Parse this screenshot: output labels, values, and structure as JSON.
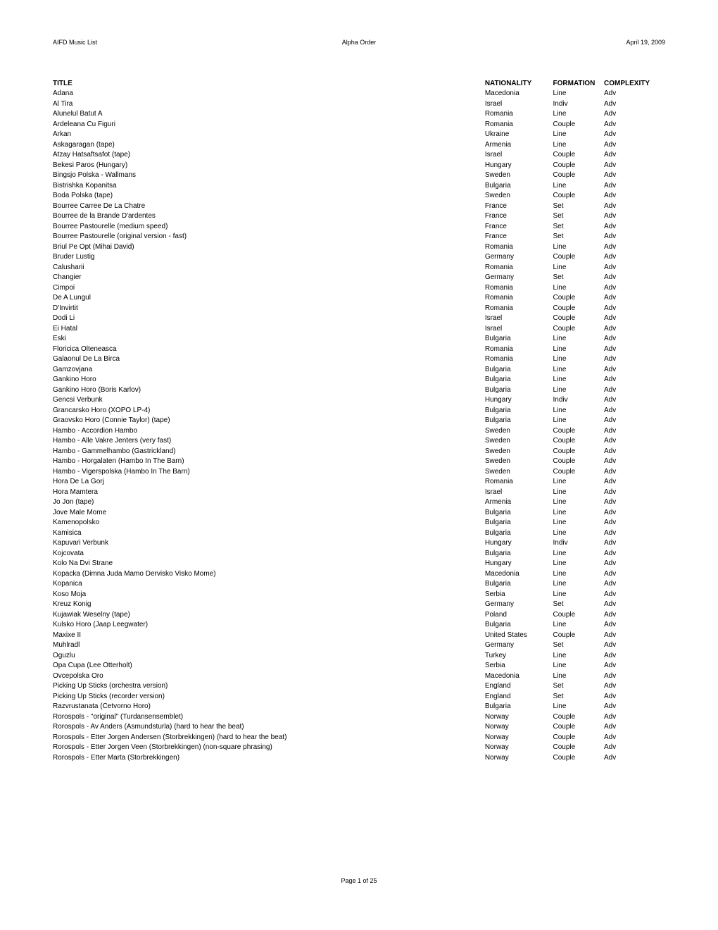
{
  "header": {
    "left": "AIFD Music List",
    "center": "Alpha Order",
    "right": "April 19, 2009"
  },
  "columns": {
    "title": "TITLE",
    "nationality": "NATIONALITY",
    "formation": "FORMATION",
    "complexity": "COMPLEXITY"
  },
  "rows": [
    {
      "title": "Adana",
      "nationality": "Macedonia",
      "formation": "Line",
      "complexity": "Adv"
    },
    {
      "title": "Al Tira",
      "nationality": "Israel",
      "formation": "Indiv",
      "complexity": "Adv"
    },
    {
      "title": "Alunelul Batut A",
      "nationality": "Romania",
      "formation": "Line",
      "complexity": "Adv"
    },
    {
      "title": "Ardeleana Cu Figuri",
      "nationality": "Romania",
      "formation": "Couple",
      "complexity": "Adv"
    },
    {
      "title": "Arkan",
      "nationality": "Ukraine",
      "formation": "Line",
      "complexity": "Adv"
    },
    {
      "title": "Askagaragan (tape)",
      "nationality": "Armenia",
      "formation": "Line",
      "complexity": "Adv"
    },
    {
      "title": "Atzay Hatsaftsafot (tape)",
      "nationality": "Israel",
      "formation": "Couple",
      "complexity": "Adv"
    },
    {
      "title": "Bekesi Paros (Hungary)",
      "nationality": "Hungary",
      "formation": "Couple",
      "complexity": "Adv"
    },
    {
      "title": "Bingsjo Polska - Wallmans",
      "nationality": "Sweden",
      "formation": "Couple",
      "complexity": "Adv"
    },
    {
      "title": "Bistrishka Kopanitsa",
      "nationality": "Bulgaria",
      "formation": "Line",
      "complexity": "Adv"
    },
    {
      "title": "Boda Polska (tape)",
      "nationality": "Sweden",
      "formation": "Couple",
      "complexity": "Adv"
    },
    {
      "title": "Bourree Carree De La Chatre",
      "nationality": "France",
      "formation": "Set",
      "complexity": "Adv"
    },
    {
      "title": "Bourree de la Brande D'ardentes",
      "nationality": "France",
      "formation": "Set",
      "complexity": "Adv"
    },
    {
      "title": "Bourree Pastourelle (medium speed)",
      "nationality": "France",
      "formation": "Set",
      "complexity": "Adv"
    },
    {
      "title": "Bourree Pastourelle (original version - fast)",
      "nationality": "France",
      "formation": "Set",
      "complexity": "Adv"
    },
    {
      "title": "Briul Pe Opt (Mihai David)",
      "nationality": "Romania",
      "formation": "Line",
      "complexity": "Adv"
    },
    {
      "title": "Bruder Lustig",
      "nationality": "Germany",
      "formation": "Couple",
      "complexity": "Adv"
    },
    {
      "title": "Calusharii",
      "nationality": "Romania",
      "formation": "Line",
      "complexity": "Adv"
    },
    {
      "title": "Changier",
      "nationality": "Germany",
      "formation": "Set",
      "complexity": "Adv"
    },
    {
      "title": "Cimpoi",
      "nationality": "Romania",
      "formation": "Line",
      "complexity": "Adv"
    },
    {
      "title": "De A Lungul",
      "nationality": "Romania",
      "formation": "Couple",
      "complexity": "Adv"
    },
    {
      "title": "D'Invirtit",
      "nationality": "Romania",
      "formation": "Couple",
      "complexity": "Adv"
    },
    {
      "title": "Dodi Li",
      "nationality": "Israel",
      "formation": "Couple",
      "complexity": "Adv"
    },
    {
      "title": "Ei Hatal",
      "nationality": "Israel",
      "formation": "Couple",
      "complexity": "Adv"
    },
    {
      "title": "Eski",
      "nationality": "Bulgaria",
      "formation": "Line",
      "complexity": "Adv"
    },
    {
      "title": "Floricica Olteneasca",
      "nationality": "Romania",
      "formation": "Line",
      "complexity": "Adv"
    },
    {
      "title": "Galaonul De La Birca",
      "nationality": "Romania",
      "formation": "Line",
      "complexity": "Adv"
    },
    {
      "title": "Gamzovjana",
      "nationality": "Bulgaria",
      "formation": "Line",
      "complexity": "Adv"
    },
    {
      "title": "Gankino Horo",
      "nationality": "Bulgaria",
      "formation": "Line",
      "complexity": "Adv"
    },
    {
      "title": "Gankino Horo (Boris Karlov)",
      "nationality": "Bulgaria",
      "formation": "Line",
      "complexity": "Adv"
    },
    {
      "title": "Gencsi Verbunk",
      "nationality": "Hungary",
      "formation": "Indiv",
      "complexity": "Adv"
    },
    {
      "title": "Grancarsko Horo (XOPO LP-4)",
      "nationality": "Bulgaria",
      "formation": "Line",
      "complexity": "Adv"
    },
    {
      "title": "Graovsko Horo (Connie Taylor) (tape)",
      "nationality": "Bulgaria",
      "formation": "Line",
      "complexity": "Adv"
    },
    {
      "title": "Hambo - Accordion Hambo",
      "nationality": "Sweden",
      "formation": "Couple",
      "complexity": "Adv"
    },
    {
      "title": "Hambo - Alle Vakre Jenters (very fast)",
      "nationality": "Sweden",
      "formation": "Couple",
      "complexity": "Adv"
    },
    {
      "title": "Hambo - Gammelhambo (Gastrickland)",
      "nationality": "Sweden",
      "formation": "Couple",
      "complexity": "Adv"
    },
    {
      "title": "Hambo - Horgalaten (Hambo In The Barn)",
      "nationality": "Sweden",
      "formation": "Couple",
      "complexity": "Adv"
    },
    {
      "title": "Hambo - Vigerspolska (Hambo In The Barn)",
      "nationality": "Sweden",
      "formation": "Couple",
      "complexity": "Adv"
    },
    {
      "title": "Hora De La Gorj",
      "nationality": "Romania",
      "formation": "Line",
      "complexity": "Adv"
    },
    {
      "title": "Hora Mamtera",
      "nationality": "Israel",
      "formation": "Line",
      "complexity": "Adv"
    },
    {
      "title": "Jo Jon (tape)",
      "nationality": "Armenia",
      "formation": "Line",
      "complexity": "Adv"
    },
    {
      "title": "Jove Male Mome",
      "nationality": "Bulgaria",
      "formation": "Line",
      "complexity": "Adv"
    },
    {
      "title": "Kamenopolsko",
      "nationality": "Bulgaria",
      "formation": "Line",
      "complexity": "Adv"
    },
    {
      "title": "Kamisica",
      "nationality": "Bulgaria",
      "formation": "Line",
      "complexity": "Adv"
    },
    {
      "title": "Kapuvari Verbunk",
      "nationality": "Hungary",
      "formation": "Indiv",
      "complexity": "Adv"
    },
    {
      "title": "Kojcovata",
      "nationality": "Bulgaria",
      "formation": "Line",
      "complexity": "Adv"
    },
    {
      "title": "Kolo Na Dvi Strane",
      "nationality": "Hungary",
      "formation": "Line",
      "complexity": "Adv"
    },
    {
      "title": "Kopacka (Dimna Juda Mamo Dervisko Visko Mome)",
      "nationality": "Macedonia",
      "formation": "Line",
      "complexity": "Adv"
    },
    {
      "title": "Kopanica",
      "nationality": "Bulgaria",
      "formation": "Line",
      "complexity": "Adv"
    },
    {
      "title": "Koso Moja",
      "nationality": "Serbia",
      "formation": "Line",
      "complexity": "Adv"
    },
    {
      "title": "Kreuz Konig",
      "nationality": "Germany",
      "formation": "Set",
      "complexity": "Adv"
    },
    {
      "title": "Kujawiak Weselny (tape)",
      "nationality": "Poland",
      "formation": "Couple",
      "complexity": "Adv"
    },
    {
      "title": "Kulsko Horo (Jaap Leegwater)",
      "nationality": "Bulgaria",
      "formation": "Line",
      "complexity": "Adv"
    },
    {
      "title": "Maxixe II",
      "nationality": "United States",
      "formation": "Couple",
      "complexity": "Adv"
    },
    {
      "title": "Muhlradl",
      "nationality": "Germany",
      "formation": "Set",
      "complexity": "Adv"
    },
    {
      "title": "Oguzlu",
      "nationality": "Turkey",
      "formation": "Line",
      "complexity": "Adv"
    },
    {
      "title": "Opa Cupa (Lee Otterholt)",
      "nationality": "Serbia",
      "formation": "Line",
      "complexity": "Adv"
    },
    {
      "title": "Ovcepolska Oro",
      "nationality": "Macedonia",
      "formation": "Line",
      "complexity": "Adv"
    },
    {
      "title": "Picking Up Sticks (orchestra version)",
      "nationality": "England",
      "formation": "Set",
      "complexity": "Adv"
    },
    {
      "title": "Picking Up Sticks (recorder version)",
      "nationality": "England",
      "formation": "Set",
      "complexity": "Adv"
    },
    {
      "title": "Razvrustanata (Cetvorno Horo)",
      "nationality": "Bulgaria",
      "formation": "Line",
      "complexity": "Adv"
    },
    {
      "title": "Rorospols - \"original\" (Turdansensemblet)",
      "nationality": "Norway",
      "formation": "Couple",
      "complexity": "Adv"
    },
    {
      "title": "Rorospols - Av Anders (Asmundsturla) (hard to hear the beat)",
      "nationality": "Norway",
      "formation": "Couple",
      "complexity": "Adv"
    },
    {
      "title": "Rorospols - Etter Jorgen Andersen (Storbrekkingen) (hard to hear the beat)",
      "nationality": "Norway",
      "formation": "Couple",
      "complexity": "Adv"
    },
    {
      "title": "Rorospols - Etter Jorgen Veen (Storbrekkingen) (non-square phrasing)",
      "nationality": "Norway",
      "formation": "Couple",
      "complexity": "Adv"
    },
    {
      "title": "Rorospols - Etter Marta (Storbrekkingen)",
      "nationality": "Norway",
      "formation": "Couple",
      "complexity": "Adv"
    }
  ],
  "footer": "Page 1 of 25"
}
